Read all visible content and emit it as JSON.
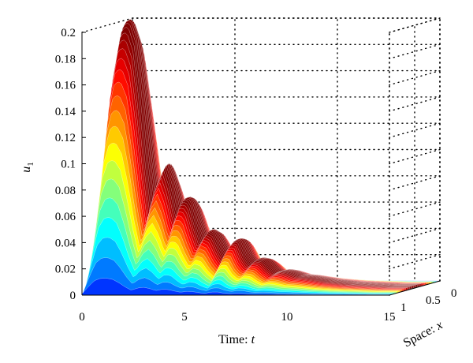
{
  "chart_data": {
    "type": "surface3d",
    "colormap": "jet",
    "zlabel_var": "u",
    "zlabel_sub": "1",
    "xlabel_prefix": "Time: ",
    "xlabel_var": "t",
    "ylabel_prefix": "Space: ",
    "ylabel_var": "x",
    "xlim": [
      0,
      15
    ],
    "ylim": [
      0,
      1
    ],
    "zlim": [
      0,
      0.2
    ],
    "z_ticks": [
      "0",
      "0.02",
      "0.04",
      "0.06",
      "0.08",
      "0.1",
      "0.12",
      "0.14",
      "0.16",
      "0.18",
      "0.2"
    ],
    "t_ticks": [
      "0",
      "5",
      "10",
      "15"
    ],
    "x_ticks": [
      "0",
      "0.5",
      "1"
    ],
    "grid": true,
    "profile": {
      "t": [
        0,
        0.3,
        0.6,
        0.9,
        1.2,
        1.5,
        1.8,
        2.1,
        2.4,
        2.7,
        3.0,
        3.3,
        3.6,
        3.9,
        4.2,
        4.5,
        4.8,
        5.1,
        5.4,
        5.7,
        6.0,
        6.3,
        6.6,
        6.9,
        7.2,
        7.5,
        7.8,
        8.1,
        8.4,
        8.7,
        9.0,
        9.5,
        10,
        11,
        12,
        13,
        14,
        15
      ],
      "max_u": [
        0.015,
        0.1,
        0.175,
        0.203,
        0.205,
        0.19,
        0.15,
        0.1,
        0.06,
        0.085,
        0.095,
        0.08,
        0.055,
        0.07,
        0.068,
        0.05,
        0.035,
        0.045,
        0.042,
        0.03,
        0.022,
        0.037,
        0.038,
        0.025,
        0.018,
        0.023,
        0.022,
        0.016,
        0.012,
        0.014,
        0.013,
        0.01,
        0.009,
        0.006,
        0.004,
        0.003,
        0.002,
        0.002
      ]
    }
  }
}
